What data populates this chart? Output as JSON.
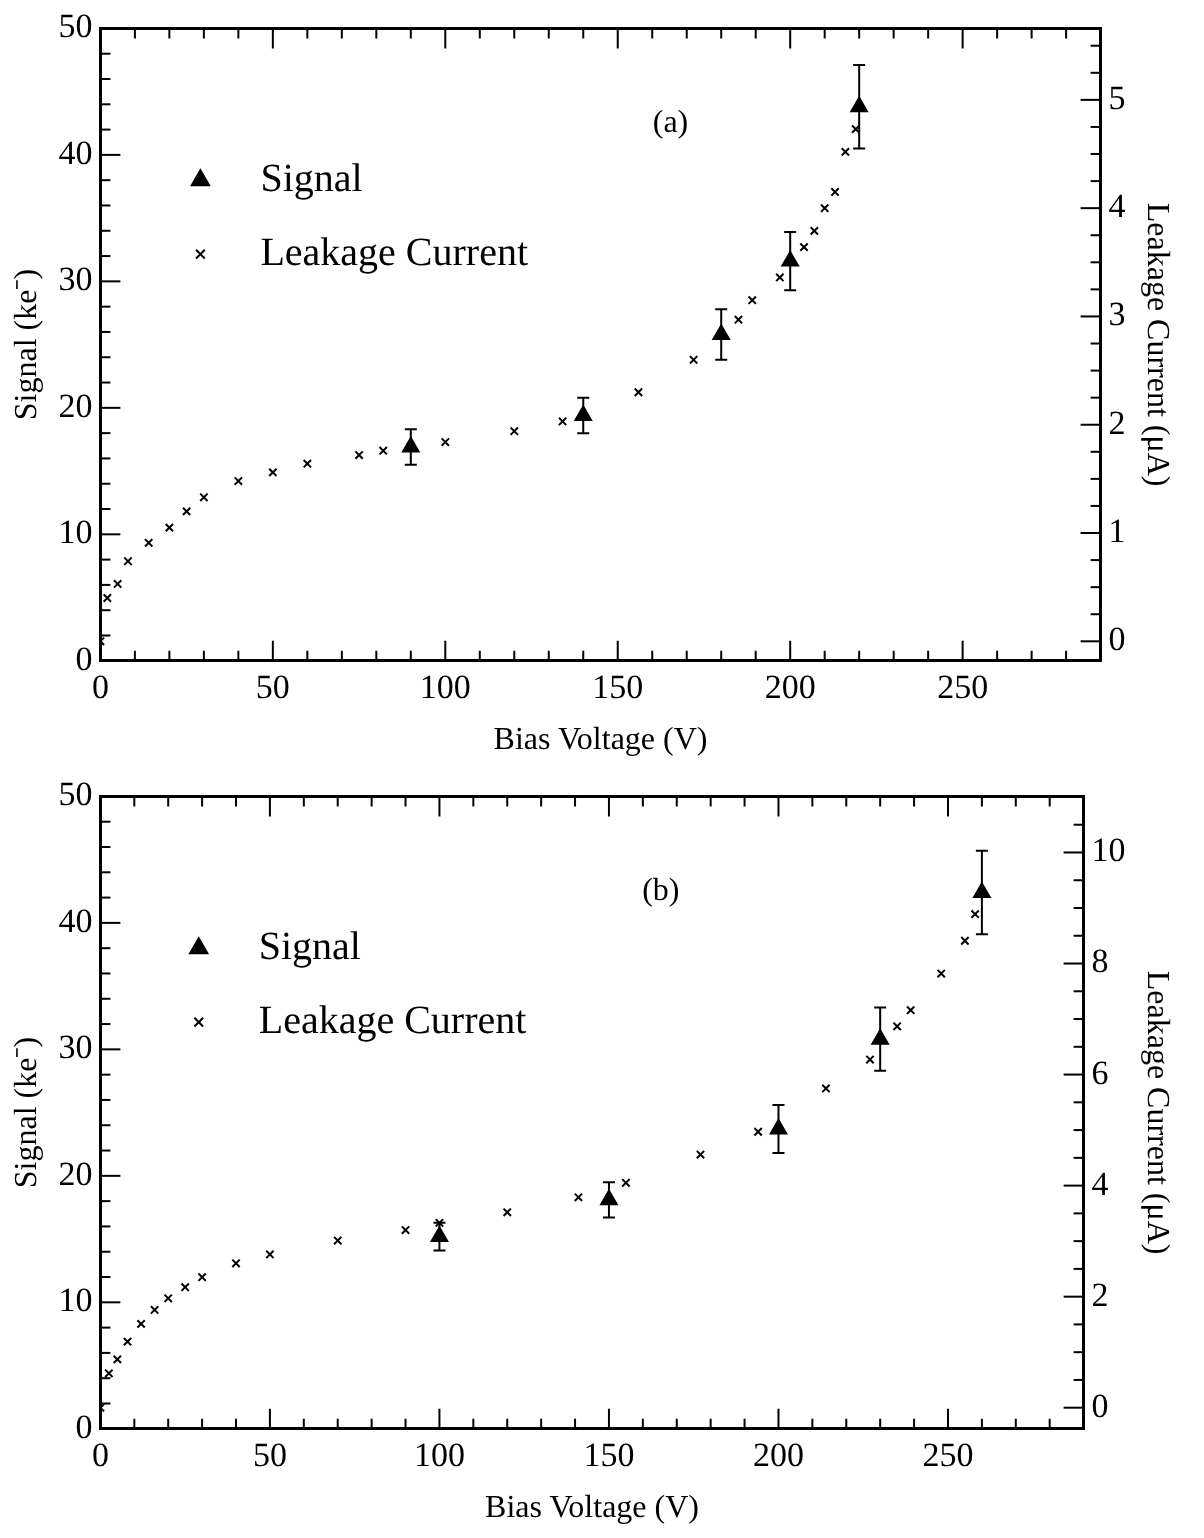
{
  "chart_data": [
    {
      "type": "scatter",
      "xlabel": "Bias Voltage (V)",
      "ylabel": "Signal (ke⁻)",
      "y2label": "Leakage Current (μA)",
      "annotations": [
        "(a)"
      ],
      "legend": "top left",
      "grid": false,
      "xlim": [
        0,
        290
      ],
      "xticks": [
        0,
        {
          "value": 10,
          "label": null
        },
        {
          "value": 20,
          "label": null
        },
        {
          "value": 30,
          "label": null
        },
        {
          "value": 40,
          "label": null
        },
        50,
        {
          "value": 60,
          "label": null
        },
        {
          "value": 70,
          "label": null
        },
        {
          "value": 80,
          "label": null
        },
        {
          "value": 90,
          "label": null
        },
        100,
        {
          "value": 110,
          "label": null
        },
        {
          "value": 120,
          "label": null
        },
        {
          "value": 130,
          "label": null
        },
        {
          "value": 140,
          "label": null
        },
        150,
        {
          "value": 160,
          "label": null
        },
        {
          "value": 170,
          "label": null
        },
        {
          "value": 180,
          "label": null
        },
        {
          "value": 190,
          "label": null
        },
        200,
        {
          "value": 210,
          "label": null
        },
        {
          "value": 220,
          "label": null
        },
        {
          "value": 230,
          "label": null
        },
        {
          "value": 240,
          "label": null
        },
        250,
        {
          "value": 260,
          "label": null
        },
        {
          "value": 270,
          "label": null
        },
        {
          "value": 280,
          "label": null
        }
      ],
      "ylim": [
        0,
        50
      ],
      "yticks": [
        0,
        {
          "value": 2,
          "label": null
        },
        {
          "value": 4,
          "label": null
        },
        {
          "value": 6,
          "label": null
        },
        {
          "value": 8,
          "label": null
        },
        10,
        {
          "value": 12,
          "label": null
        },
        {
          "value": 14,
          "label": null
        },
        {
          "value": 16,
          "label": null
        },
        {
          "value": 18,
          "label": null
        },
        20,
        {
          "value": 22,
          "label": null
        },
        {
          "value": 24,
          "label": null
        },
        {
          "value": 26,
          "label": null
        },
        {
          "value": 28,
          "label": null
        },
        30,
        {
          "value": 32,
          "label": null
        },
        {
          "value": 34,
          "label": null
        },
        {
          "value": 36,
          "label": null
        },
        {
          "value": 38,
          "label": null
        },
        40,
        {
          "value": 42,
          "label": null
        },
        {
          "value": 44,
          "label": null
        },
        {
          "value": 46,
          "label": null
        },
        {
          "value": 48,
          "label": null
        },
        50
      ],
      "y2lim": [
        -0.18,
        5.66
      ],
      "y2ticks": [
        0,
        {
          "value": 0.25,
          "label": null
        },
        {
          "value": 0.5,
          "label": null
        },
        {
          "value": 0.75,
          "label": null
        },
        1,
        {
          "value": 1.25,
          "label": null
        },
        {
          "value": 1.5,
          "label": null
        },
        {
          "value": 1.75,
          "label": null
        },
        2,
        {
          "value": 2.25,
          "label": null
        },
        {
          "value": 2.5,
          "label": null
        },
        {
          "value": 2.75,
          "label": null
        },
        3,
        {
          "value": 3.25,
          "label": null
        },
        {
          "value": 3.5,
          "label": null
        },
        {
          "value": 3.75,
          "label": null
        },
        4,
        {
          "value": 4.25,
          "label": null
        },
        {
          "value": 4.5,
          "label": null
        },
        {
          "value": 4.75,
          "label": null
        },
        5,
        {
          "value": 5.25,
          "label": null
        },
        {
          "value": 5.5,
          "label": null
        }
      ],
      "series": [
        {
          "name": "Signal",
          "color": "#000000",
          "marker": "triangle",
          "x": [
            90,
            140,
            180,
            200,
            220
          ],
          "values": [
            16.9,
            19.4,
            25.8,
            31.6,
            43.8
          ],
          "errors": [
            1.4,
            1.4,
            2.0,
            2.3,
            3.3
          ]
        },
        {
          "name": "Leakage Current",
          "color": "#000000",
          "marker": "cross",
          "axis": "y2",
          "x": [
            0,
            2,
            5,
            8,
            14,
            20,
            25,
            30,
            40,
            50,
            60,
            75,
            82,
            100,
            120,
            134,
            156,
            172,
            185,
            189,
            197,
            204,
            207,
            210,
            213,
            216,
            219
          ],
          "values": [
            0.0,
            0.4,
            0.53,
            0.74,
            0.91,
            1.05,
            1.2,
            1.33,
            1.48,
            1.56,
            1.64,
            1.72,
            1.76,
            1.84,
            1.94,
            2.03,
            2.3,
            2.6,
            2.97,
            3.15,
            3.36,
            3.64,
            3.79,
            4.0,
            4.15,
            4.52,
            4.73
          ]
        }
      ]
    },
    {
      "type": "scatter",
      "xlabel": "Bias Voltage (V)",
      "ylabel": "Signal (ke⁻)",
      "y2label": "Leakage Current (μA)",
      "annotations": [
        "(b)"
      ],
      "legend": "top left",
      "grid": false,
      "xlim": [
        0,
        290
      ],
      "xticks": [
        0,
        {
          "value": 10,
          "label": null
        },
        {
          "value": 20,
          "label": null
        },
        {
          "value": 30,
          "label": null
        },
        {
          "value": 40,
          "label": null
        },
        50,
        {
          "value": 60,
          "label": null
        },
        {
          "value": 70,
          "label": null
        },
        {
          "value": 80,
          "label": null
        },
        {
          "value": 90,
          "label": null
        },
        100,
        {
          "value": 110,
          "label": null
        },
        {
          "value": 120,
          "label": null
        },
        {
          "value": 130,
          "label": null
        },
        {
          "value": 140,
          "label": null
        },
        150,
        {
          "value": 160,
          "label": null
        },
        {
          "value": 170,
          "label": null
        },
        {
          "value": 180,
          "label": null
        },
        {
          "value": 190,
          "label": null
        },
        200,
        {
          "value": 210,
          "label": null
        },
        {
          "value": 220,
          "label": null
        },
        {
          "value": 230,
          "label": null
        },
        {
          "value": 240,
          "label": null
        },
        250,
        {
          "value": 260,
          "label": null
        },
        {
          "value": 270,
          "label": null
        },
        {
          "value": 280,
          "label": null
        }
      ],
      "ylim": [
        0,
        50
      ],
      "yticks": [
        0,
        {
          "value": 2,
          "label": null
        },
        {
          "value": 4,
          "label": null
        },
        {
          "value": 6,
          "label": null
        },
        {
          "value": 8,
          "label": null
        },
        10,
        {
          "value": 12,
          "label": null
        },
        {
          "value": 14,
          "label": null
        },
        {
          "value": 16,
          "label": null
        },
        {
          "value": 18,
          "label": null
        },
        20,
        {
          "value": 22,
          "label": null
        },
        {
          "value": 24,
          "label": null
        },
        {
          "value": 26,
          "label": null
        },
        {
          "value": 28,
          "label": null
        },
        30,
        {
          "value": 32,
          "label": null
        },
        {
          "value": 34,
          "label": null
        },
        {
          "value": 36,
          "label": null
        },
        {
          "value": 38,
          "label": null
        },
        40,
        {
          "value": 42,
          "label": null
        },
        {
          "value": 44,
          "label": null
        },
        {
          "value": 46,
          "label": null
        },
        {
          "value": 48,
          "label": null
        },
        50
      ],
      "y2lim": [
        -0.38,
        11.01
      ],
      "y2ticks": [
        0,
        {
          "value": 0.5,
          "label": null
        },
        {
          "value": 1,
          "label": null
        },
        {
          "value": 1.5,
          "label": null
        },
        2,
        {
          "value": 2.5,
          "label": null
        },
        {
          "value": 3,
          "label": null
        },
        {
          "value": 3.5,
          "label": null
        },
        4,
        {
          "value": 4.5,
          "label": null
        },
        {
          "value": 5,
          "label": null
        },
        {
          "value": 5.5,
          "label": null
        },
        6,
        {
          "value": 6.5,
          "label": null
        },
        {
          "value": 7,
          "label": null
        },
        {
          "value": 7.5,
          "label": null
        },
        8,
        {
          "value": 8.5,
          "label": null
        },
        {
          "value": 9,
          "label": null
        },
        {
          "value": 9.5,
          "label": null
        },
        10,
        {
          "value": 10.5,
          "label": null
        }
      ],
      "series": [
        {
          "name": "Signal",
          "color": "#000000",
          "marker": "triangle",
          "x": [
            100,
            150,
            200,
            230,
            260
          ],
          "values": [
            15.2,
            18.1,
            23.7,
            30.8,
            42.4
          ],
          "errors": [
            1.1,
            1.4,
            1.9,
            2.5,
            3.3
          ]
        },
        {
          "name": "Leakage Current",
          "color": "#000000",
          "marker": "cross",
          "axis": "y2",
          "x": [
            0,
            2.5,
            5,
            8,
            12,
            16,
            20,
            25,
            30,
            40,
            50,
            70,
            90,
            100,
            120,
            141,
            155,
            177,
            194,
            214,
            227,
            235,
            239,
            248,
            255,
            258
          ],
          "values": [
            0.0,
            0.62,
            0.87,
            1.19,
            1.51,
            1.76,
            1.97,
            2.17,
            2.35,
            2.6,
            2.76,
            3.01,
            3.2,
            3.33,
            3.52,
            3.79,
            4.05,
            4.56,
            4.97,
            5.75,
            6.27,
            6.87,
            7.16,
            7.82,
            8.41,
            8.89
          ]
        }
      ]
    }
  ]
}
